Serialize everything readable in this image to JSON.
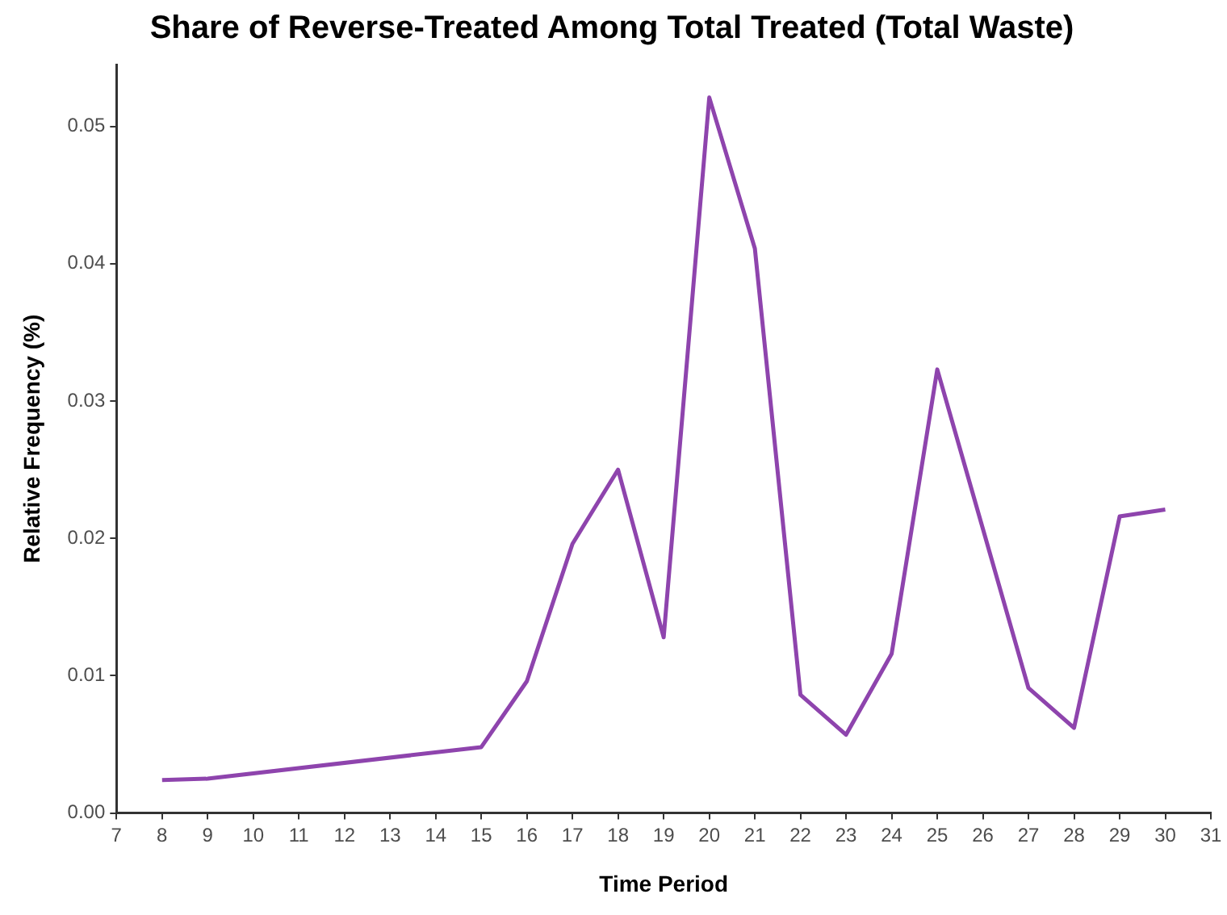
{
  "chart_data": {
    "type": "line",
    "title": "Share of Reverse-Treated Among Total Treated (Total Waste)",
    "xlabel": "Time Period",
    "ylabel": "Relative Frequency (%)",
    "x": [
      8,
      9,
      15,
      16,
      17,
      18,
      19,
      20,
      21,
      22,
      23,
      24,
      25,
      26,
      27,
      28,
      29,
      30
    ],
    "series": [
      {
        "color": "#8e44ad",
        "values": [
          0.0024,
          0.0025,
          0.0048,
          0.0096,
          0.0196,
          0.025,
          0.0128,
          0.0521,
          0.0411,
          0.0086,
          0.0057,
          0.0116,
          0.0323,
          0.0207,
          0.0091,
          0.0062,
          0.0216,
          0.0221
        ]
      }
    ],
    "xlim": [
      7,
      31
    ],
    "xticks": [
      7,
      8,
      9,
      10,
      11,
      12,
      13,
      14,
      15,
      16,
      17,
      18,
      19,
      20,
      21,
      22,
      23,
      24,
      25,
      26,
      27,
      28,
      29,
      30,
      31
    ],
    "ylim": [
      0,
      0.0545
    ],
    "yticks": [
      {
        "value": 0,
        "label": "0.00"
      },
      {
        "value": 0.01,
        "label": "0.01"
      },
      {
        "value": 0.02,
        "label": "0.02"
      },
      {
        "value": 0.03,
        "label": "0.03"
      },
      {
        "value": 0.04,
        "label": "0.04"
      },
      {
        "value": 0.05,
        "label": "0.05"
      }
    ],
    "grid": false,
    "legend": false,
    "marker": "none",
    "line_style": "solid"
  }
}
